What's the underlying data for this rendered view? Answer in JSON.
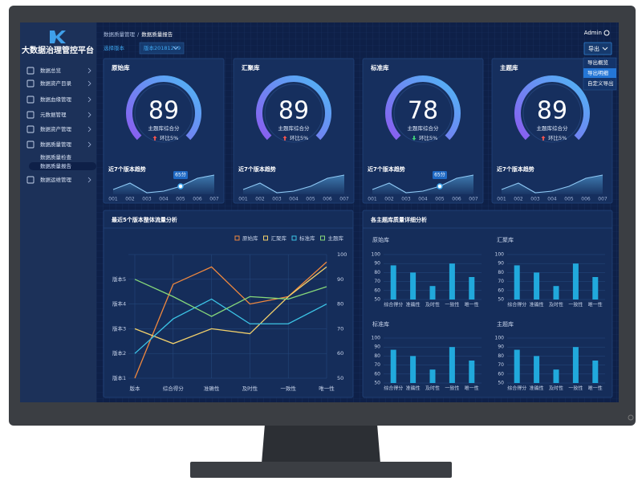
{
  "sidebar": {
    "title": "大数据治理管控平台",
    "menu": [
      {
        "label": "数据总览"
      },
      {
        "label": "数据资产目录"
      },
      {
        "label": "数据血缘管理"
      },
      {
        "label": "元数据管理"
      },
      {
        "label": "数据资产管理"
      },
      {
        "label": "数据质量管理"
      },
      {
        "label": "数据质量检查",
        "sub": true
      },
      {
        "label": "数据质量报告",
        "sub": true,
        "active": true
      },
      {
        "label": "数据运维管理"
      }
    ]
  },
  "header": {
    "breadcrumb": [
      "数据质量管理",
      "数据质量报告"
    ],
    "separator": "/",
    "user": "Admin",
    "version_label": "选择版本",
    "version": "版本20181209",
    "export": "导出",
    "export_menu": [
      "导出概览",
      "导出明细",
      "自定义导出"
    ],
    "export_active": 1
  },
  "cards": [
    {
      "title": "原始库",
      "score": 89,
      "score_label": "主题库综合分",
      "change": "环比5%",
      "change_direction": "up",
      "trend": {
        "type": "area",
        "title": "近7个版本趋势",
        "categories": [
          "001",
          "002",
          "003",
          "004",
          "005",
          "006",
          "007"
        ],
        "values": [
          63,
          67,
          61,
          62,
          65,
          70,
          72
        ],
        "value_labels": [
          null,
          null,
          null,
          null,
          "65分",
          null,
          null
        ]
      }
    },
    {
      "title": "汇聚库",
      "score": 89,
      "score_label": "主题库综合分",
      "change": "环比5%",
      "change_direction": "up",
      "trend": {
        "type": "area",
        "title": "近7个版本趋势",
        "categories": [
          "001",
          "002",
          "003",
          "004",
          "005",
          "006",
          "007"
        ],
        "values": [
          63,
          67,
          61,
          62,
          65,
          70,
          72
        ]
      }
    },
    {
      "title": "标准库",
      "score": 78,
      "score_label": "主题库综合分",
      "change": "环比5%",
      "change_direction": "down",
      "trend": {
        "type": "area",
        "title": "近7个版本趋势",
        "categories": [
          "001",
          "002",
          "003",
          "004",
          "005",
          "006",
          "007"
        ],
        "values": [
          63,
          67,
          61,
          62,
          65,
          70,
          72
        ],
        "value_labels": [
          null,
          null,
          null,
          null,
          "65分",
          null,
          null
        ]
      }
    },
    {
      "title": "主题库",
      "score": 89,
      "score_label": "主题库综合分",
      "change": "环比5%",
      "change_direction": "up",
      "trend": {
        "type": "area",
        "title": "近7个版本趋势",
        "categories": [
          "001",
          "002",
          "003",
          "004",
          "005",
          "006",
          "007"
        ],
        "values": [
          63,
          67,
          61,
          62,
          65,
          70,
          72
        ]
      }
    }
  ],
  "line_panel": {
    "type": "line",
    "title": "最近5个版本整体流量分析",
    "categories": [
      "版本",
      "综合得分",
      "准确性",
      "及时性",
      "一致性",
      "唯一性"
    ],
    "ylabels": [
      "版本1",
      "版本2",
      "版本3",
      "版本4",
      "版本5"
    ],
    "ylim": [
      50,
      100
    ],
    "yticks": [
      50,
      60,
      70,
      80,
      90,
      100
    ],
    "grid": true,
    "series": [
      {
        "name": "原始库",
        "color": "#f0883e",
        "values": [
          50,
          88,
          95,
          80,
          83,
          97
        ]
      },
      {
        "name": "汇聚库",
        "color": "#f2d06b",
        "values": [
          70,
          64,
          70,
          68,
          83,
          95
        ]
      },
      {
        "name": "标准库",
        "color": "#3cc4e6",
        "values": [
          60,
          74,
          82,
          72,
          72,
          80
        ]
      },
      {
        "name": "主题库",
        "color": "#86d87a",
        "values": [
          90,
          83,
          75,
          83,
          82,
          87
        ]
      }
    ]
  },
  "bar_panel": {
    "title": "各主题库质量详细分析",
    "charts": [
      {
        "type": "bar",
        "title": "原始库",
        "categories": [
          "综合得分",
          "准确性",
          "及时性",
          "一致性",
          "唯一性"
        ],
        "values": [
          88,
          80,
          65,
          90,
          75
        ],
        "ylim": [
          50,
          100
        ],
        "yticks": [
          50,
          60,
          70,
          80,
          90,
          100
        ],
        "color": "#21a9dc"
      },
      {
        "type": "bar",
        "title": "汇聚库",
        "categories": [
          "综合得分",
          "准确性",
          "及时性",
          "一致性",
          "唯一性"
        ],
        "values": [
          88,
          80,
          65,
          90,
          75
        ],
        "ylim": [
          50,
          100
        ],
        "yticks": [
          50,
          60,
          70,
          80,
          90,
          100
        ],
        "color": "#21a9dc"
      },
      {
        "type": "bar",
        "title": "标准库",
        "categories": [
          "综合得分",
          "准确性",
          "及时性",
          "一致性",
          "唯一性"
        ],
        "values": [
          87,
          80,
          65,
          90,
          75
        ],
        "ylim": [
          50,
          100
        ],
        "yticks": [
          50,
          60,
          70,
          80,
          90,
          100
        ],
        "color": "#21a9dc"
      },
      {
        "type": "bar",
        "title": "主题库",
        "categories": [
          "综合得分",
          "准确性",
          "及时性",
          "一致性",
          "唯一性"
        ],
        "values": [
          87,
          80,
          65,
          90,
          75
        ],
        "ylim": [
          50,
          100
        ],
        "yticks": [
          50,
          60,
          70,
          80,
          90,
          100
        ],
        "color": "#21a9dc"
      }
    ]
  }
}
